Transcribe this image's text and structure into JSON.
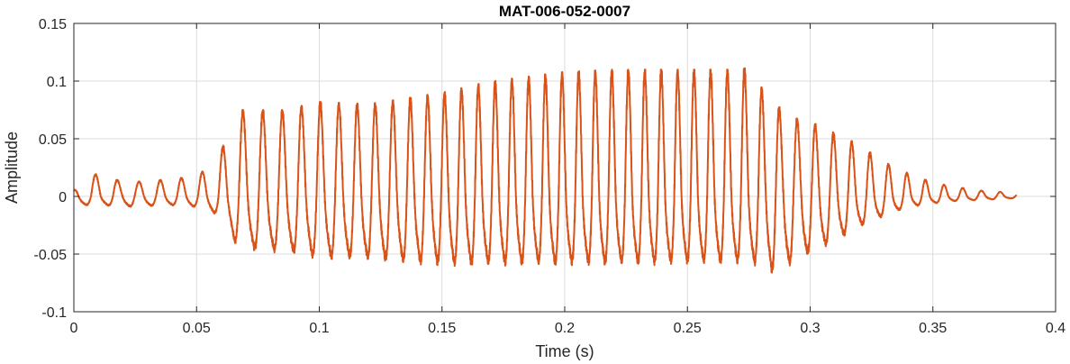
{
  "chart_data": {
    "type": "line",
    "title": "MAT-006-052-0007",
    "xlabel": "Time (s)",
    "ylabel": "Amplitude",
    "xlim": [
      0,
      0.4
    ],
    "ylim": [
      -0.1,
      0.15
    ],
    "xticks": [
      0,
      0.05,
      0.1,
      0.15,
      0.2,
      0.25,
      0.3,
      0.35,
      0.4
    ],
    "xtick_labels": [
      "0",
      "0.05",
      "0.1",
      "0.15",
      "0.2",
      "0.25",
      "0.3",
      "0.35",
      "0.4"
    ],
    "yticks": [
      -0.1,
      -0.05,
      0,
      0.05,
      0.1,
      0.15
    ],
    "ytick_labels": [
      "-0.1",
      "-0.05",
      "0",
      "0.05",
      "0.1",
      "0.15"
    ],
    "grid": true,
    "color": "#D95319",
    "series": [
      {
        "duration": 0.384,
        "envelope": [
          [
            0.0,
            0.005,
            0.01
          ],
          [
            0.004,
            0.018,
            0.01
          ],
          [
            0.012,
            0.02,
            0.01
          ],
          [
            0.02,
            0.012,
            0.012
          ],
          [
            0.04,
            0.015,
            0.01
          ],
          [
            0.05,
            0.018,
            0.012
          ],
          [
            0.058,
            0.03,
            0.02
          ],
          [
            0.062,
            0.05,
            0.03
          ],
          [
            0.066,
            0.075,
            0.055
          ],
          [
            0.075,
            0.075,
            0.062
          ],
          [
            0.085,
            0.075,
            0.062
          ],
          [
            0.1,
            0.082,
            0.07
          ],
          [
            0.12,
            0.08,
            0.072
          ],
          [
            0.15,
            0.09,
            0.078
          ],
          [
            0.17,
            0.1,
            0.078
          ],
          [
            0.2,
            0.108,
            0.077
          ],
          [
            0.22,
            0.11,
            0.077
          ],
          [
            0.25,
            0.11,
            0.076
          ],
          [
            0.27,
            0.11,
            0.075
          ],
          [
            0.276,
            0.112,
            0.075
          ],
          [
            0.28,
            0.095,
            0.08
          ],
          [
            0.285,
            0.085,
            0.087
          ],
          [
            0.29,
            0.07,
            0.08
          ],
          [
            0.3,
            0.065,
            0.065
          ],
          [
            0.31,
            0.055,
            0.05
          ],
          [
            0.32,
            0.045,
            0.035
          ],
          [
            0.33,
            0.03,
            0.022
          ],
          [
            0.34,
            0.02,
            0.012
          ],
          [
            0.35,
            0.012,
            0.008
          ],
          [
            0.36,
            0.008,
            0.005
          ],
          [
            0.37,
            0.005,
            0.004
          ],
          [
            0.384,
            0.003,
            0.002
          ]
        ],
        "freq_points": [
          [
            0.0,
            110
          ],
          [
            0.06,
            120
          ],
          [
            0.15,
            145
          ],
          [
            0.25,
            150
          ],
          [
            0.3,
            135
          ],
          [
            0.384,
            130
          ]
        ]
      }
    ]
  }
}
